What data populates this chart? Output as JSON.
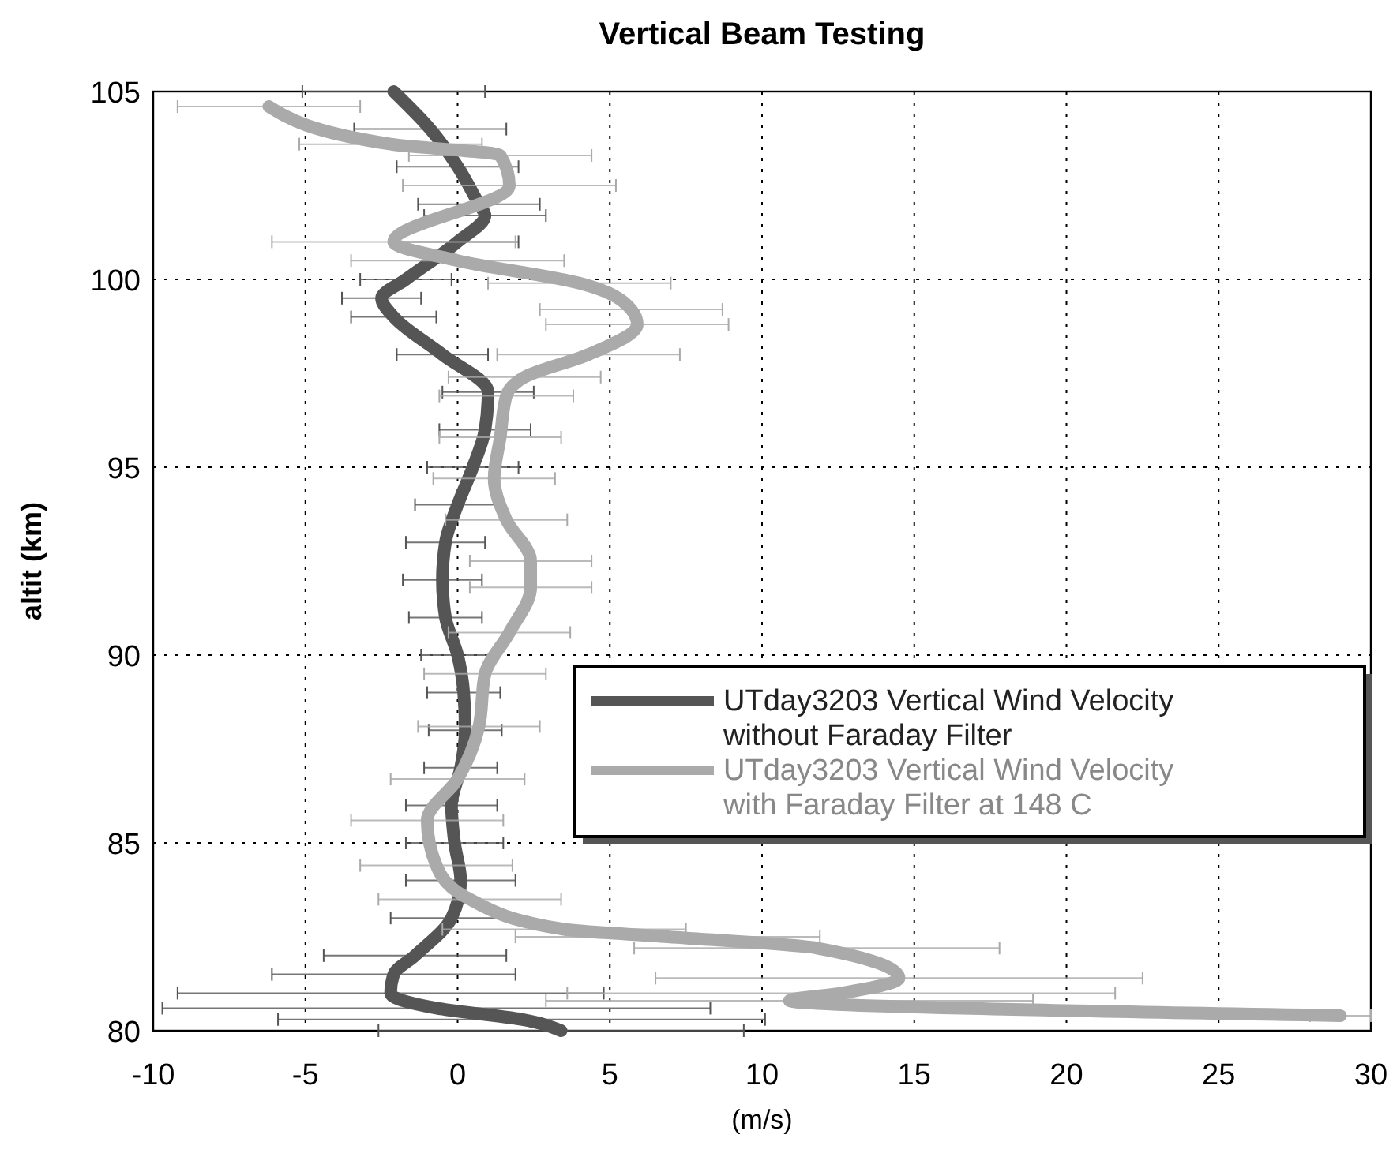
{
  "chart_data": {
    "type": "line",
    "title": "Vertical Beam Testing",
    "xlabel": "(m/s)",
    "ylabel": "altit (km)",
    "xlim": [
      -10,
      30
    ],
    "xticks": [
      -10,
      -5,
      0,
      5,
      10,
      15,
      20,
      25,
      30
    ],
    "ylim": [
      80,
      105
    ],
    "yticks": [
      80,
      85,
      90,
      95,
      100,
      105
    ],
    "grid": true,
    "legend": "bottom right",
    "series": [
      {
        "name": "UTday3203 Vertical Wind Velocity without Faraday Filter",
        "color": "#555555",
        "x": [
          3.4,
          2.1,
          -0.7,
          -2.2,
          -2.1,
          -1.4,
          -0.2,
          0.1,
          -0.1,
          -0.2,
          0.1,
          0.25,
          0.2,
          0,
          -0.4,
          -0.5,
          -0.4,
          0,
          0.5,
          0.9,
          1.0,
          -0.5,
          -2.1,
          -2.5,
          -1.7,
          0,
          0.9,
          0.7,
          0,
          -0.9,
          -2.1
        ],
        "values": [
          80,
          80.3,
          80.6,
          81,
          81.5,
          82,
          83,
          84,
          85,
          86,
          87,
          88,
          89,
          90,
          91,
          92,
          93,
          94,
          95,
          96,
          97,
          98,
          99,
          99.5,
          100,
          101,
          101.7,
          102,
          103,
          104,
          105
        ],
        "xerrors": [
          6,
          8,
          9,
          7,
          4,
          3,
          2,
          1.8,
          1.6,
          1.5,
          1.2,
          1.2,
          1.2,
          1.2,
          1.2,
          1.3,
          1.3,
          1.4,
          1.5,
          1.5,
          1.5,
          1.5,
          1.4,
          1.3,
          1.5,
          2,
          2,
          2,
          2,
          2.5,
          3
        ]
      },
      {
        "name": "UTday3203 Vertical Wind Velocity with Faraday Filter at 148 C",
        "color": "#aaaaaa",
        "x": [
          29,
          10.9,
          12.6,
          14.5,
          11.8,
          6.9,
          3.5,
          0.4,
          -0.7,
          -1.0,
          0,
          0.7,
          0.9,
          1.7,
          2.4,
          2.4,
          1.6,
          1.2,
          1.4,
          1.6,
          2.2,
          4.3,
          5.9,
          5.7,
          4.0,
          0,
          -2.1,
          1.7,
          1.4,
          -2.2,
          -6.2
        ],
        "values": [
          80.4,
          80.8,
          81,
          81.4,
          82.2,
          82.5,
          82.7,
          83.5,
          84.4,
          85.6,
          86.7,
          88.1,
          89.5,
          90.6,
          91.8,
          92.5,
          93.6,
          94.7,
          95.8,
          96.9,
          97.4,
          98,
          98.8,
          99.2,
          99.9,
          100.5,
          101,
          102.5,
          103.3,
          103.6,
          104.6
        ],
        "xerrors": [
          1,
          8,
          9,
          8,
          6,
          5,
          4,
          3,
          2.5,
          2.5,
          2.2,
          2,
          2,
          2,
          2,
          2,
          2,
          2,
          2,
          2.2,
          2.5,
          3,
          3,
          3,
          3,
          3.5,
          4,
          3.5,
          3,
          3,
          3
        ]
      }
    ]
  }
}
